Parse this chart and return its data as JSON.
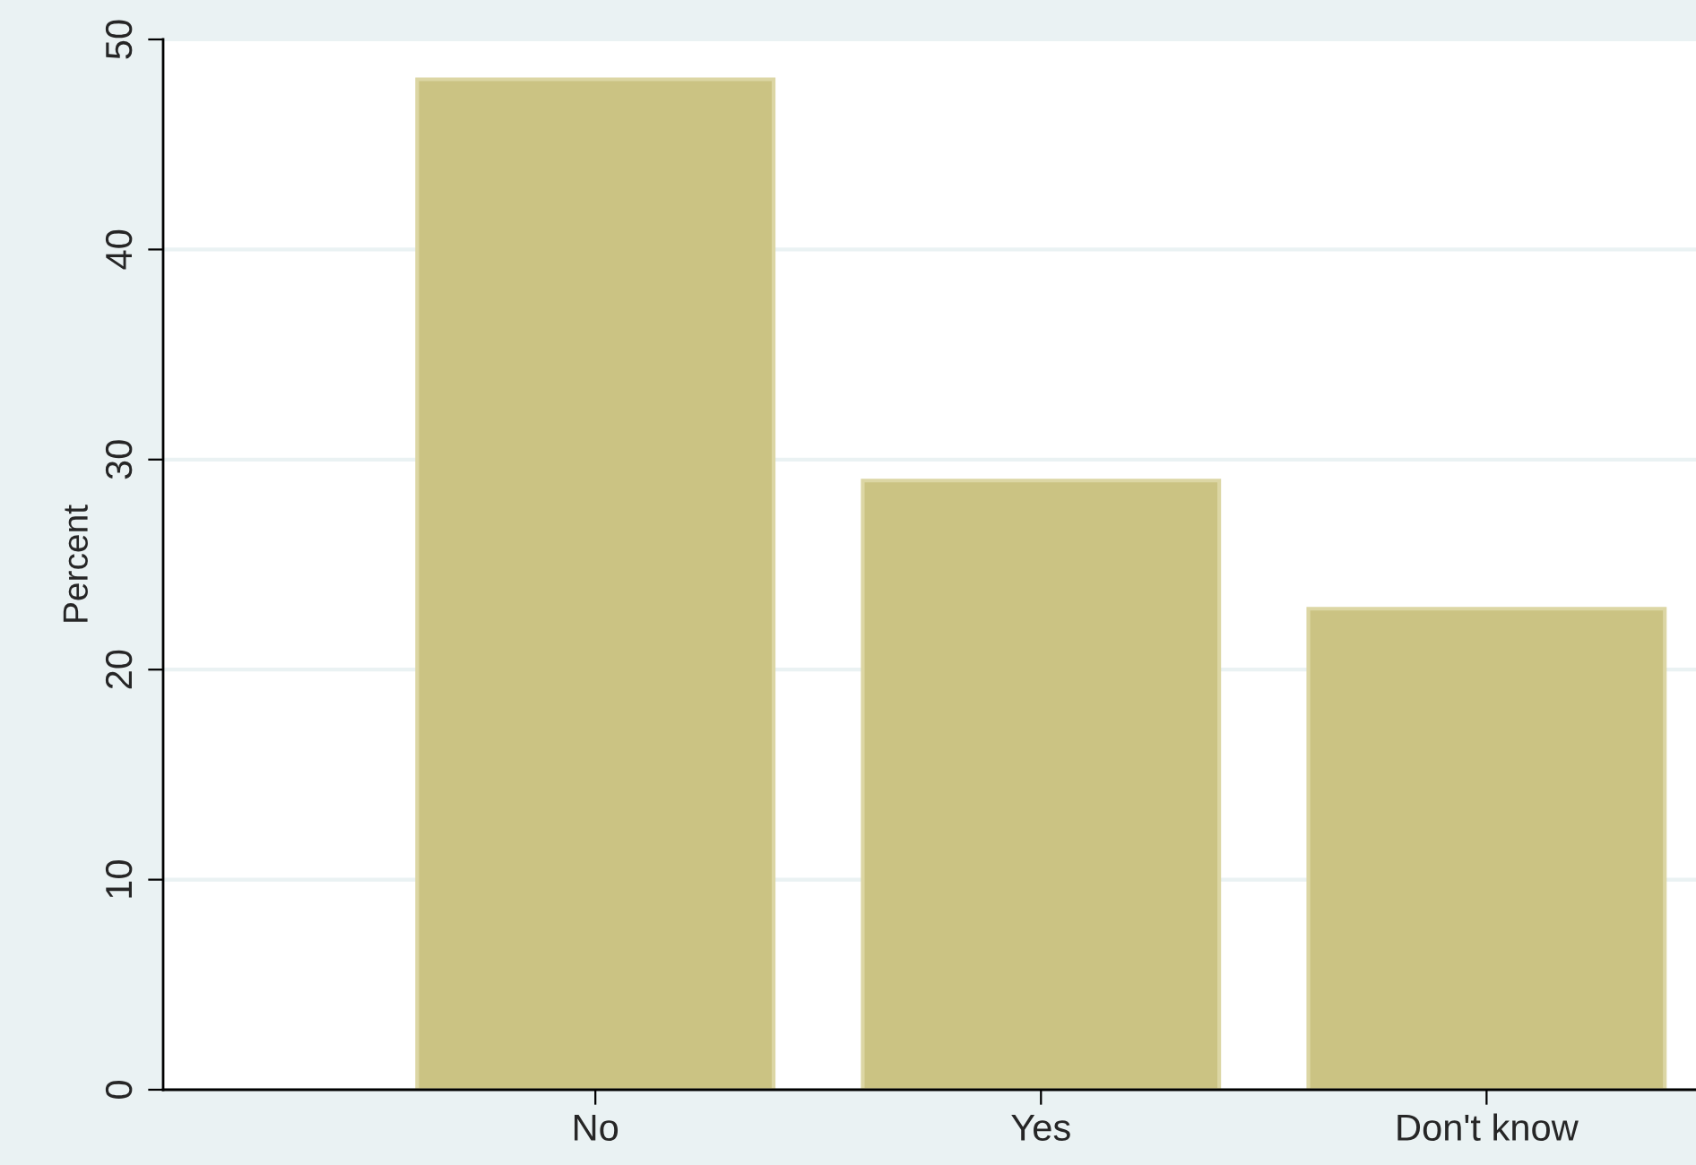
{
  "chart_data": {
    "type": "bar",
    "ylabel": "Percent",
    "categories": [
      "No",
      "Yes",
      "Don't know"
    ],
    "values": [
      48.1,
      29.0,
      22.9
    ],
    "color": "#cbc383",
    "ylim": [
      0,
      50
    ],
    "yticks": [
      0,
      10,
      20,
      30,
      40,
      50
    ],
    "grid": "y",
    "legend": false
  }
}
